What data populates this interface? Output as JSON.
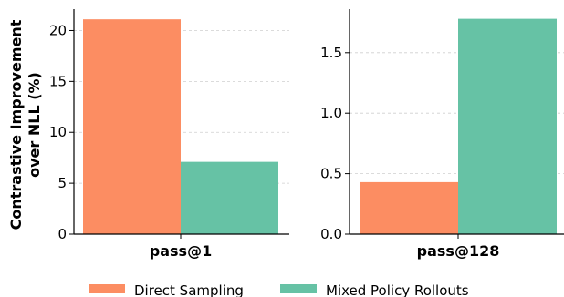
{
  "chart_data": [
    {
      "type": "bar",
      "categories": [
        "pass@1"
      ],
      "xlabel": "pass@1",
      "ylabel": "Contrastive Improvement over NLL (%)",
      "ylabel_lines": [
        "Contrastive Improvement",
        "over NLL (%)"
      ],
      "ylim": [
        0,
        22.1
      ],
      "yticks": [
        "0",
        "5",
        "10",
        "15",
        "20"
      ],
      "grid": "y-dashed",
      "series": [
        {
          "name": "Direct Sampling",
          "values": [
            21.1
          ],
          "color": "#fc8d62"
        },
        {
          "name": "Mixed Policy Rollouts",
          "values": [
            7.1
          ],
          "color": "#66c2a5"
        }
      ]
    },
    {
      "type": "bar",
      "categories": [
        "pass@128"
      ],
      "xlabel": "pass@128",
      "ylabel": "",
      "ylim": [
        0,
        1.86
      ],
      "yticks": [
        "0.0",
        "0.5",
        "1.0",
        "1.5"
      ],
      "grid": "y-dashed",
      "series": [
        {
          "name": "Direct Sampling",
          "values": [
            0.43
          ],
          "color": "#fc8d62"
        },
        {
          "name": "Mixed Policy Rollouts",
          "values": [
            1.78
          ],
          "color": "#66c2a5"
        }
      ]
    }
  ],
  "legend": {
    "placement": "bottom-center",
    "items": [
      {
        "label": "Direct Sampling",
        "color": "#fc8d62"
      },
      {
        "label": "Mixed Policy Rollouts",
        "color": "#66c2a5"
      }
    ]
  }
}
